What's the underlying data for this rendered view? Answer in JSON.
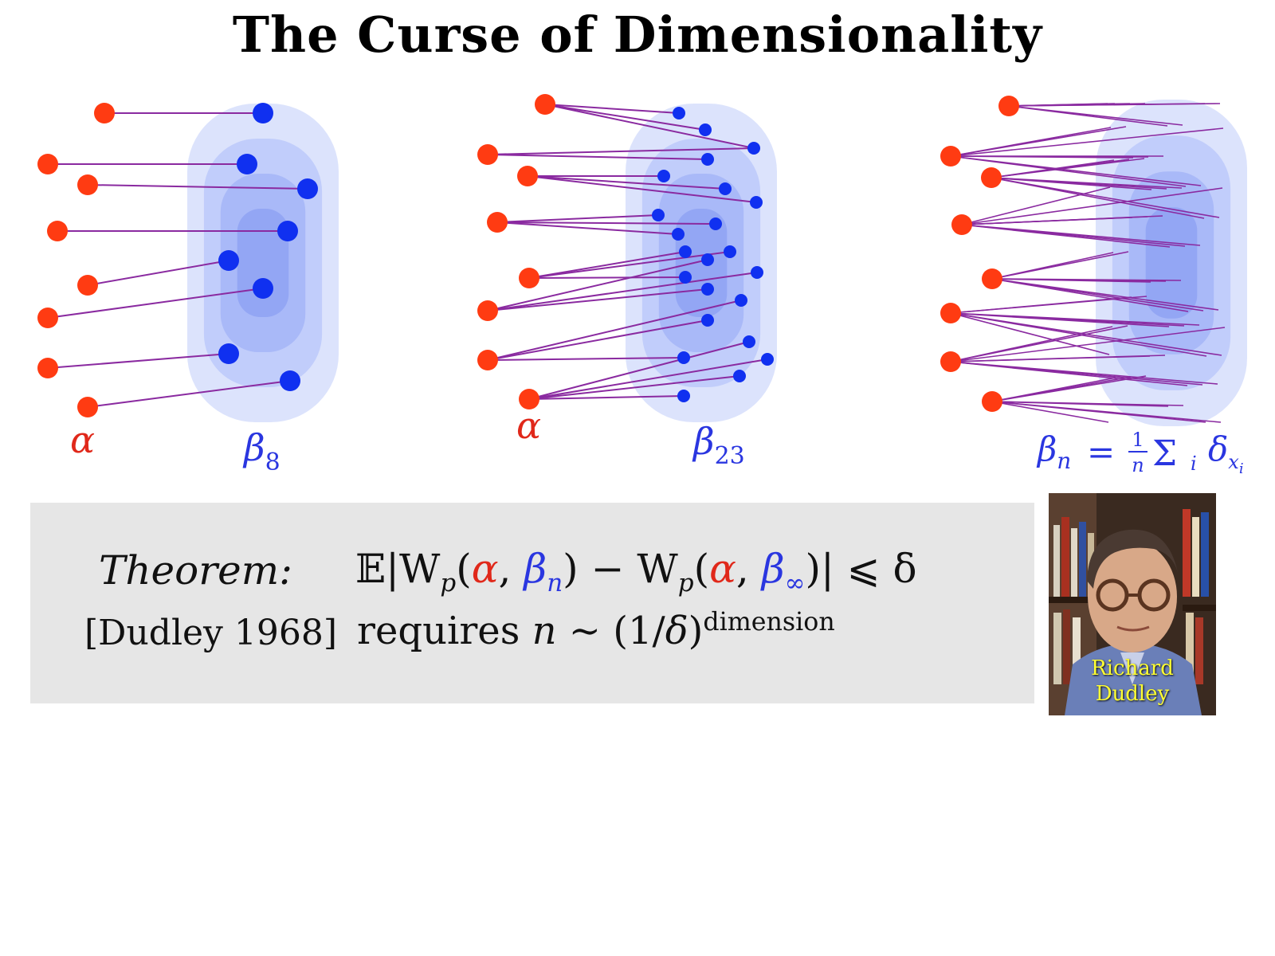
{
  "slide": {
    "title": "The Curse of Dimensionality"
  },
  "panels": [
    {
      "source_label": "α",
      "target_label": "β",
      "target_subscript": "8"
    },
    {
      "source_label": "α",
      "target_label": "β",
      "target_subscript": "23"
    },
    {
      "target_label": "β",
      "target_subscript": "n",
      "formula": "β_n = (1/n) Σ_i δ_{x_i}",
      "formula_rest": "= ",
      "frac_num": "1",
      "frac_den": "n",
      "sum_symbol": "Σ",
      "sum_index": "i",
      "delta": "δ",
      "delta_sub": "x",
      "delta_sub_sub": "i"
    }
  ],
  "theorem": {
    "label": "Theorem:",
    "formula_prefix": "𝔼|W",
    "p": "p",
    "alpha": "α",
    "beta_n": "β",
    "n": "n",
    "beta_inf": "β",
    "inf": "∞",
    "formula_suffix": ")| ⩽ δ",
    "citation": "[Dudley 1968]",
    "requires_word": "requires ",
    "requires_n": "n",
    "requires_mid": " ∼ (1/",
    "requires_delta": "δ",
    "requires_close": ")",
    "requires_exponent": "dimension"
  },
  "portrait": {
    "caption_line1": "Richard",
    "caption_line2": "Dudley"
  },
  "colors": {
    "source_points": "#ff3b12",
    "target_points": "#1030f0",
    "match_lines": "#8a2aa0",
    "density_blob": "#b9c7fb"
  },
  "icons": {
    "portrait": "person-photo"
  }
}
